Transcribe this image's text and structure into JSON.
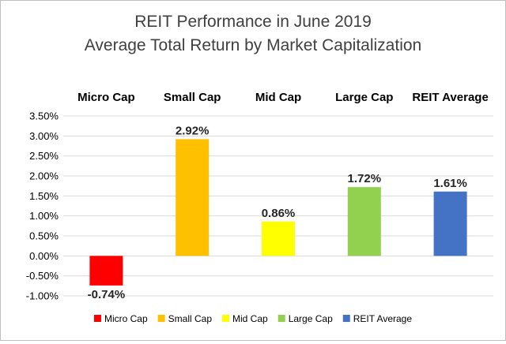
{
  "chart_data": {
    "type": "bar",
    "title": [
      "REIT Performance in June 2019",
      "Average Total Return by Market Capitalization"
    ],
    "xlabel": "",
    "ylabel": "",
    "categories": [
      "Micro Cap",
      "Small Cap",
      "Mid Cap",
      "Large Cap",
      "REIT Average"
    ],
    "values": [
      -0.74,
      2.92,
      0.86,
      1.72,
      1.61
    ],
    "data_labels": [
      "-0.74%",
      "2.92%",
      "0.86%",
      "1.72%",
      "1.61%"
    ],
    "colors": [
      "#ff0000",
      "#ffc000",
      "#ffff00",
      "#92d050",
      "#4472c4"
    ],
    "ylim": [
      -1.0,
      3.5
    ],
    "yticks": [
      3.5,
      3.0,
      2.5,
      2.0,
      1.5,
      1.0,
      0.5,
      0.0,
      -0.5,
      -1.0
    ],
    "ytick_labels": [
      "3.50%",
      "3.00%",
      "2.50%",
      "2.00%",
      "1.50%",
      "1.00%",
      "0.50%",
      "0.00%",
      "-0.50%",
      "-1.00%"
    ],
    "grid": true,
    "category_labels_position": "top",
    "legend_position": "bottom",
    "legend": [
      "Micro Cap",
      "Small Cap",
      "Mid Cap",
      "Large Cap",
      "REIT Average"
    ]
  }
}
